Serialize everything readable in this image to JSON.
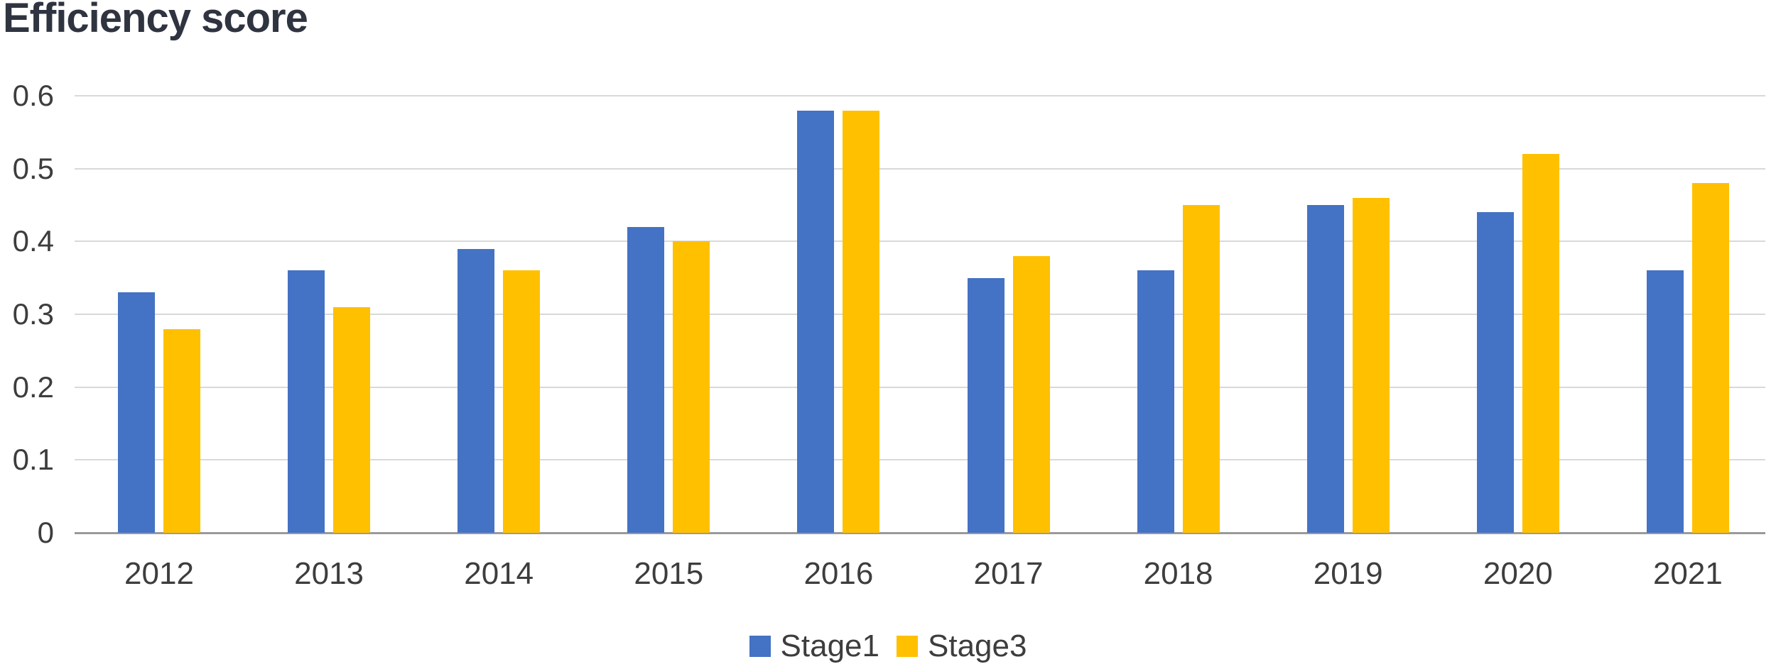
{
  "title": "Efficiency score",
  "chart_data": {
    "type": "bar",
    "title": "Efficiency score",
    "categories": [
      "2012",
      "2013",
      "2014",
      "2015",
      "2016",
      "2017",
      "2018",
      "2019",
      "2020",
      "2021"
    ],
    "series": [
      {
        "name": "Stage1",
        "color": "#4472C4",
        "values": [
          0.33,
          0.36,
          0.39,
          0.42,
          0.58,
          0.35,
          0.36,
          0.45,
          0.44,
          0.36
        ]
      },
      {
        "name": "Stage3",
        "color": "#FFC000",
        "values": [
          0.28,
          0.31,
          0.36,
          0.4,
          0.58,
          0.38,
          0.45,
          0.46,
          0.52,
          0.48
        ]
      }
    ],
    "xlabel": "",
    "ylabel": "",
    "ylim": [
      0,
      0.6
    ],
    "ytick_step": 0.1,
    "ytick_labels": [
      "0",
      "0.1",
      "0.2",
      "0.3",
      "0.4",
      "0.5",
      "0.6"
    ],
    "grid": "horizontal",
    "legend_position": "bottom-center",
    "colors": {
      "gridline": "#D9D9D9",
      "axis_line": "#9A9A9A",
      "tick_text": "#3D3D3D",
      "title_text": "#2F3440",
      "background": "#FFFFFF"
    }
  },
  "legend": {
    "items": [
      {
        "label": "Stage1",
        "color": "#4472C4"
      },
      {
        "label": "Stage3",
        "color": "#FFC000"
      }
    ]
  }
}
